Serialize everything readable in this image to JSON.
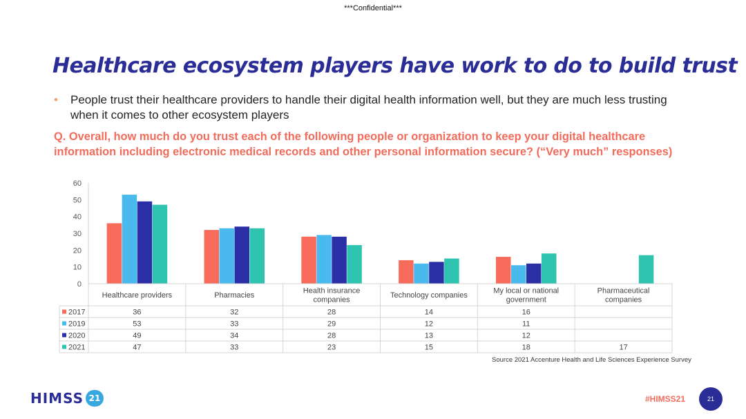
{
  "header": {
    "confidential": "***Confidential***"
  },
  "slide": {
    "title": "Healthcare ecosystem players have work to do to build trust",
    "bullet": "People trust their healthcare providers to handle their digital health information well, but they are much less trusting when it comes to other ecosystem players",
    "question": "Q. Overall, how much do you trust each of the following people or organization to keep your digital healthcare information including electronic medical records and other personal information secure? (“Very much” responses)",
    "source": "Source 2021 Accenture Health and Life Sciences Experience Survey"
  },
  "footer": {
    "logo_text": "HIMSS",
    "logo_badge": "21",
    "hashtag": "#HIMSS21",
    "page_number": "21"
  },
  "colors": {
    "title": "#2b2d96",
    "accent": "#f26c5b",
    "series": [
      "#f76b5b",
      "#4ab9ee",
      "#2a2fa6",
      "#2ec4b0"
    ]
  },
  "chart_data": {
    "type": "bar",
    "categories": [
      [
        "Healthcare providers"
      ],
      [
        "Pharmacies"
      ],
      [
        "Health insurance",
        "companies"
      ],
      [
        "Technology companies"
      ],
      [
        "My local or national",
        "government"
      ],
      [
        "Pharmaceutical",
        "companies"
      ]
    ],
    "series": [
      {
        "name": "2017",
        "values": [
          36,
          32,
          28,
          14,
          16,
          null
        ]
      },
      {
        "name": "2019",
        "values": [
          53,
          33,
          29,
          12,
          11,
          null
        ]
      },
      {
        "name": "2020",
        "values": [
          49,
          34,
          28,
          13,
          12,
          null
        ]
      },
      {
        "name": "2021",
        "values": [
          47,
          33,
          23,
          15,
          18,
          17
        ]
      }
    ],
    "ylim": [
      0,
      60
    ],
    "yticks": [
      0,
      10,
      20,
      30,
      40,
      50,
      60
    ],
    "grid": false,
    "legend": "data-table"
  }
}
